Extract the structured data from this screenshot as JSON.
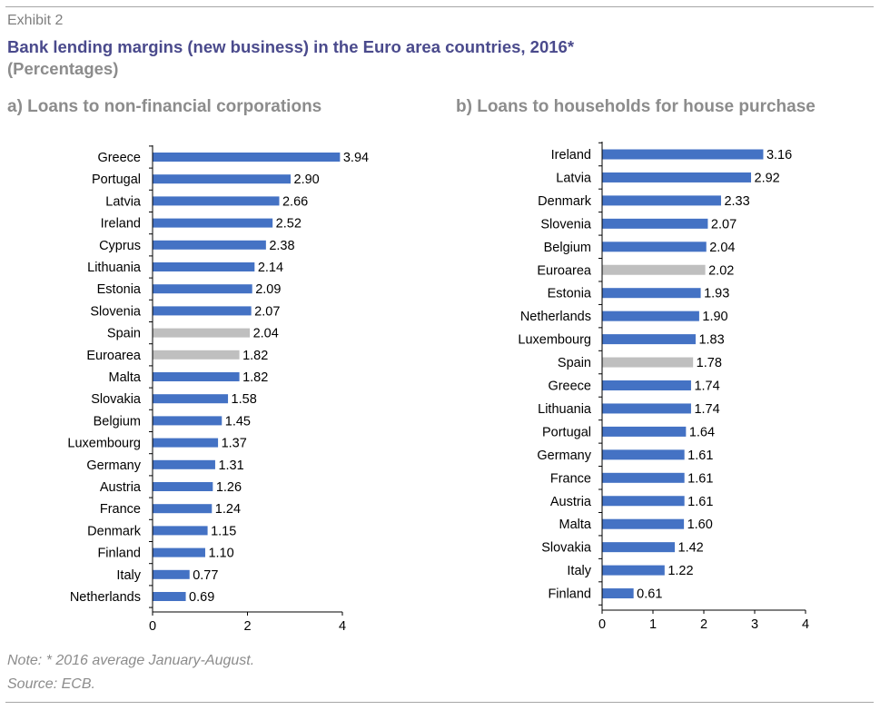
{
  "header": {
    "exhibit": "Exhibit 2",
    "title": "Bank lending margins (new business) in the Euro area countries, 2016*",
    "subtitle": "(Percentages)"
  },
  "footer": {
    "note": "Note: * 2016 average January-August.",
    "source": "Source: ECB."
  },
  "colors": {
    "bar": "#4472c4",
    "highlight": "#bfbfbf",
    "axis": "#000000",
    "text": "#000000"
  },
  "chart_data": [
    {
      "type": "bar",
      "orientation": "horizontal",
      "title": "a) Loans to non-financial corporations",
      "categories": [
        "Greece",
        "Portugal",
        "Latvia",
        "Ireland",
        "Cyprus",
        "Lithuania",
        "Estonia",
        "Slovenia",
        "Spain",
        "Euroarea",
        "Malta",
        "Slovakia",
        "Belgium",
        "Luxembourg",
        "Germany",
        "Austria",
        "France",
        "Denmark",
        "Finland",
        "Italy",
        "Netherlands"
      ],
      "values": [
        3.94,
        2.9,
        2.66,
        2.52,
        2.38,
        2.14,
        2.09,
        2.07,
        2.04,
        1.82,
        1.82,
        1.58,
        1.45,
        1.37,
        1.31,
        1.26,
        1.24,
        1.15,
        1.1,
        0.77,
        0.69
      ],
      "value_labels": [
        "3.94",
        "2.90",
        "2.66",
        "2.52",
        "2.38",
        "2.14",
        "2.09",
        "2.07",
        "2.04",
        "1.82",
        "1.82",
        "1.58",
        "1.45",
        "1.37",
        "1.31",
        "1.26",
        "1.24",
        "1.15",
        "1.10",
        "0.77",
        "0.69"
      ],
      "highlighted": [
        "Spain",
        "Euroarea"
      ],
      "xlim": [
        0,
        4
      ],
      "xticks": [
        "0",
        "2",
        "4"
      ]
    },
    {
      "type": "bar",
      "orientation": "horizontal",
      "title": "b) Loans to households for house purchase",
      "categories": [
        "Ireland",
        "Latvia",
        "Denmark",
        "Slovenia",
        "Belgium",
        "Euroarea",
        "Estonia",
        "Netherlands",
        "Luxembourg",
        "Spain",
        "Greece",
        "Lithuania",
        "Portugal",
        "Germany",
        "France",
        "Austria",
        "Malta",
        "Slovakia",
        "Italy",
        "Finland"
      ],
      "values": [
        3.16,
        2.92,
        2.33,
        2.07,
        2.04,
        2.02,
        1.93,
        1.9,
        1.83,
        1.78,
        1.74,
        1.74,
        1.64,
        1.61,
        1.61,
        1.61,
        1.6,
        1.42,
        1.22,
        0.61
      ],
      "value_labels": [
        "3.16",
        "2.92",
        "2.33",
        "2.07",
        "2.04",
        "2.02",
        "1.93",
        "1.90",
        "1.83",
        "1.78",
        "1.74",
        "1.74",
        "1.64",
        "1.61",
        "1.61",
        "1.61",
        "1.60",
        "1.42",
        "1.22",
        "0.61"
      ],
      "highlighted": [
        "Euroarea",
        "Spain"
      ],
      "xlim": [
        0,
        4
      ],
      "xticks": [
        "0",
        "1",
        "2",
        "3",
        "4"
      ]
    }
  ]
}
